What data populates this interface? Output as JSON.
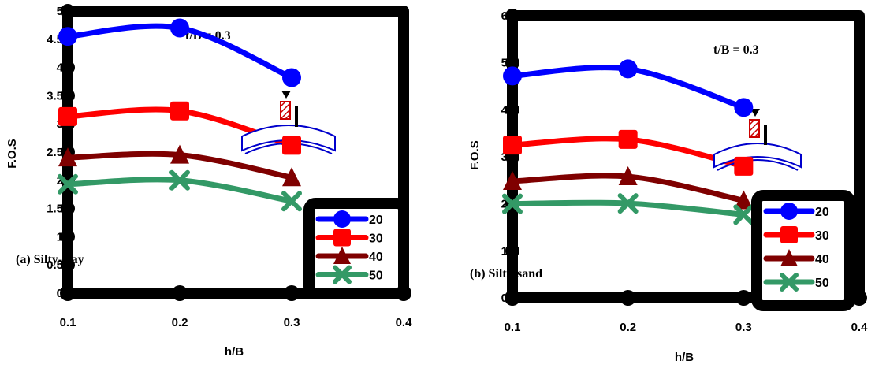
{
  "chart_data": [
    {
      "type": "line",
      "panel_label": "(a) Silty-clay",
      "annotation": "t/B = 0.3",
      "xlabel": "h/B",
      "ylabel": "F.O.S",
      "xlim": [
        0.1,
        0.4
      ],
      "ylim": [
        0,
        5
      ],
      "xticks": [
        "0.1",
        "0.2",
        "0.3",
        "0.4"
      ],
      "yticks": [
        "0",
        "0.5",
        "1",
        "1.5",
        "2",
        "2.5",
        "3",
        "3.5",
        "4",
        "4.5",
        "5"
      ],
      "x": [
        0.1,
        0.2,
        0.3
      ],
      "series": [
        {
          "name": "20",
          "values": [
            4.55,
            4.7,
            3.82
          ],
          "color": "#0000ff",
          "marker": "circle"
        },
        {
          "name": "30",
          "values": [
            3.13,
            3.23,
            2.62
          ],
          "color": "#ff0000",
          "marker": "square"
        },
        {
          "name": "40",
          "values": [
            2.4,
            2.45,
            2.05
          ],
          "color": "#7f0000",
          "marker": "triangle"
        },
        {
          "name": "50",
          "values": [
            1.93,
            2.0,
            1.63
          ],
          "color": "#339966",
          "marker": "x"
        }
      ],
      "legend": "bottom-right"
    },
    {
      "type": "line",
      "panel_label": "(b) Silty-sand",
      "annotation": "t/B = 0.3",
      "xlabel": "h/B",
      "ylabel": "F.O.S",
      "xlim": [
        0.1,
        0.4
      ],
      "ylim": [
        0,
        6
      ],
      "xticks": [
        "0.1",
        "0.2",
        "0.3",
        "0.4"
      ],
      "yticks": [
        "0",
        "1",
        "2",
        "3",
        "4",
        "5",
        "6"
      ],
      "x": [
        0.1,
        0.2,
        0.3
      ],
      "series": [
        {
          "name": "20",
          "values": [
            4.72,
            4.87,
            4.05
          ],
          "color": "#0000ff",
          "marker": "circle"
        },
        {
          "name": "30",
          "values": [
            3.25,
            3.37,
            2.8
          ],
          "color": "#ff0000",
          "marker": "square"
        },
        {
          "name": "40",
          "values": [
            2.48,
            2.58,
            2.07
          ],
          "color": "#7f0000",
          "marker": "triangle"
        },
        {
          "name": "50",
          "values": [
            2.0,
            2.01,
            1.77
          ],
          "color": "#339966",
          "marker": "x"
        }
      ],
      "legend": "bottom-right"
    }
  ]
}
